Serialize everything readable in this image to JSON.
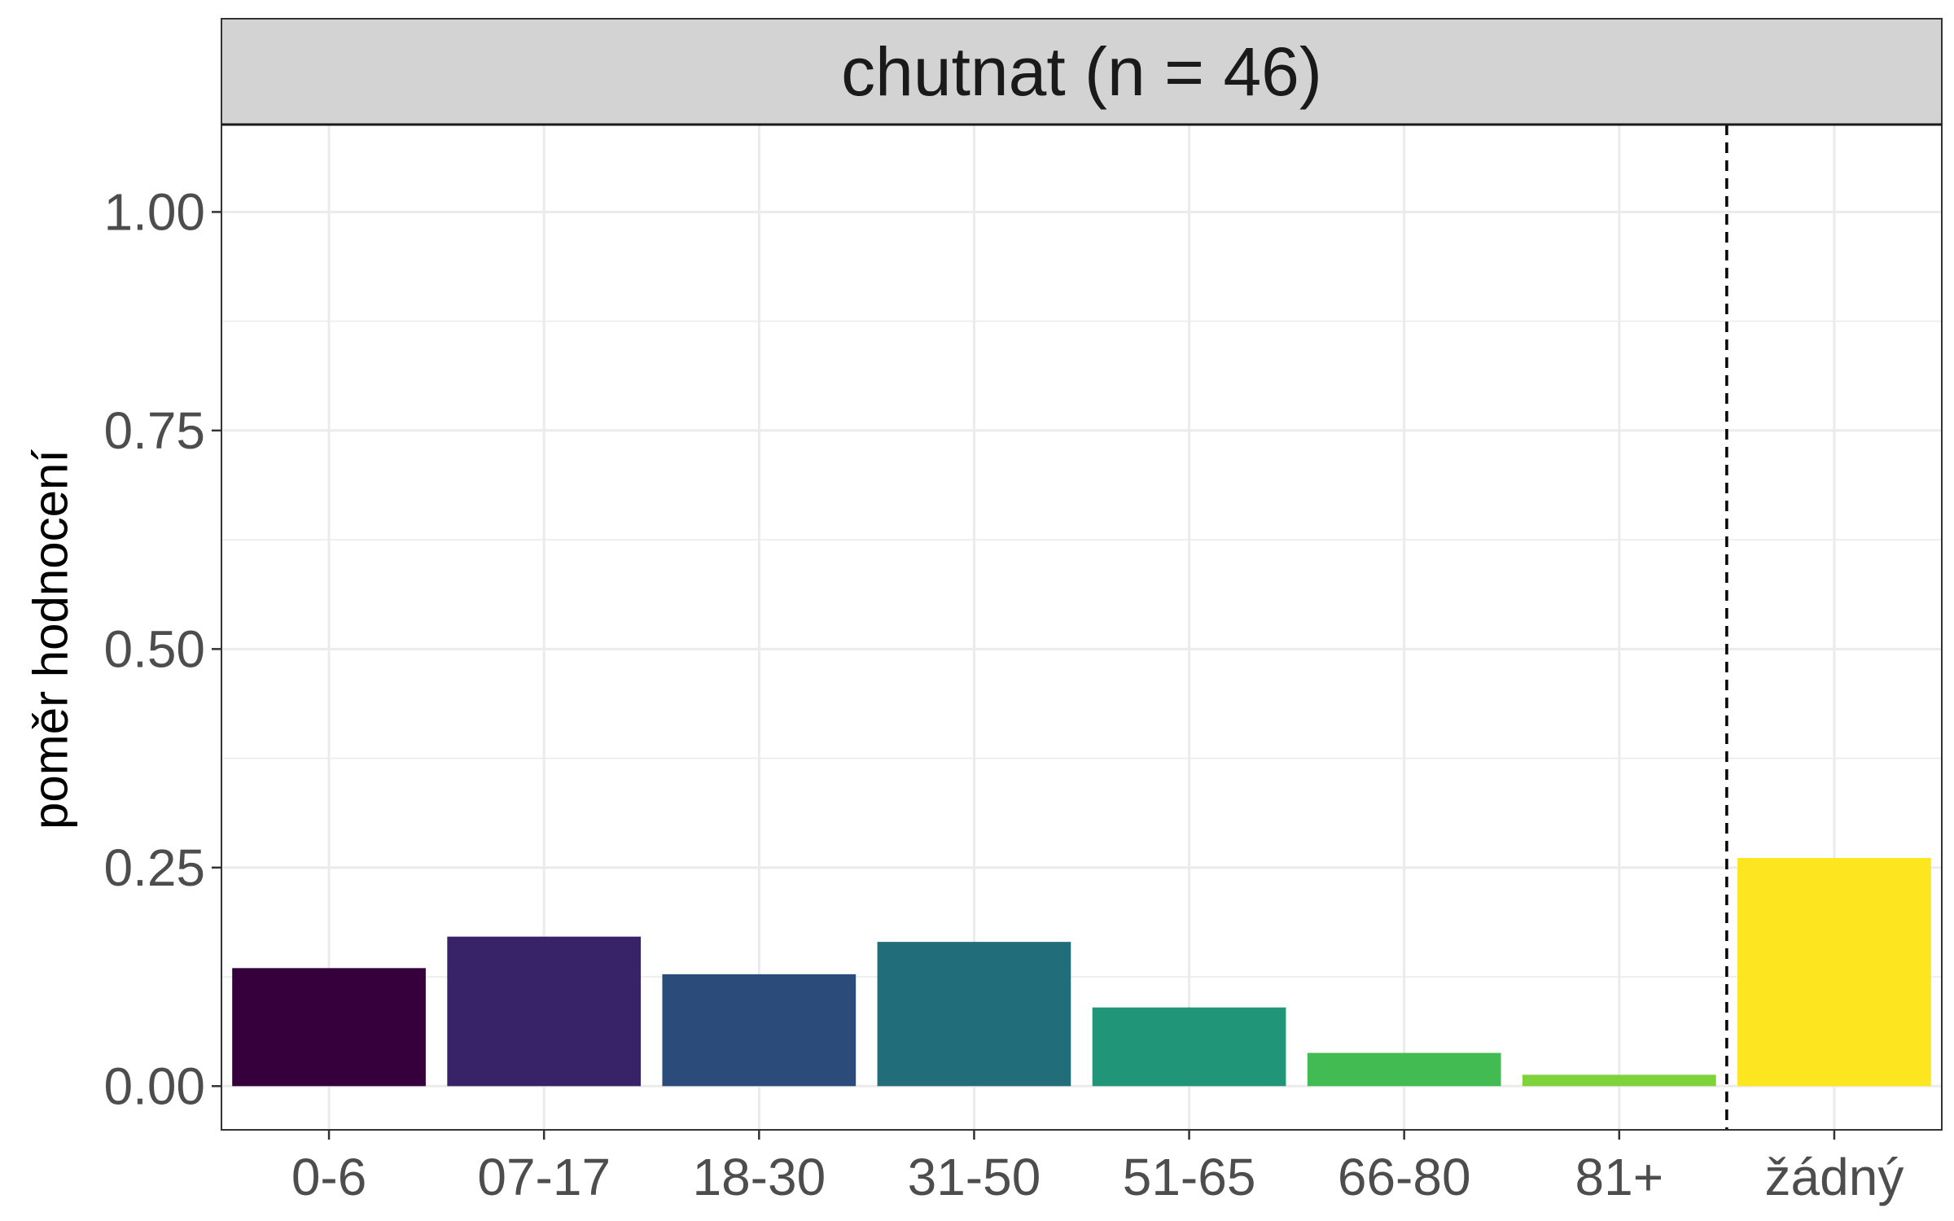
{
  "chart_data": {
    "type": "bar",
    "facet_title": "chutnat (n = 46)",
    "title": "",
    "xlabel": "",
    "ylabel": "poměr hodnocení",
    "categories": [
      "0-6",
      "07-17",
      "18-30",
      "31-50",
      "51-65",
      "66-80",
      "81+",
      "žádný"
    ],
    "values": [
      0.135,
      0.171,
      0.128,
      0.165,
      0.09,
      0.038,
      0.013,
      0.261
    ],
    "colors": [
      "#35003C",
      "#382268",
      "#2B4B7A",
      "#226D7A",
      "#209577",
      "#42BB53",
      "#7ED33A",
      "#FDE520"
    ],
    "ylim": [
      -0.05,
      1.1
    ],
    "yticks": [
      0.0,
      0.25,
      0.5,
      0.75,
      1.0
    ],
    "ytick_labels": [
      "0.00",
      "0.25",
      "0.50",
      "0.75",
      "1.00"
    ],
    "separator_between": [
      6,
      7
    ],
    "grid": true,
    "legend": "none"
  },
  "colors": {
    "strip_fill": "#d3d3d3",
    "grid": "#ebebeb",
    "axis_text": "#4d4d4d",
    "border": "#333333",
    "separator": "#000000"
  }
}
